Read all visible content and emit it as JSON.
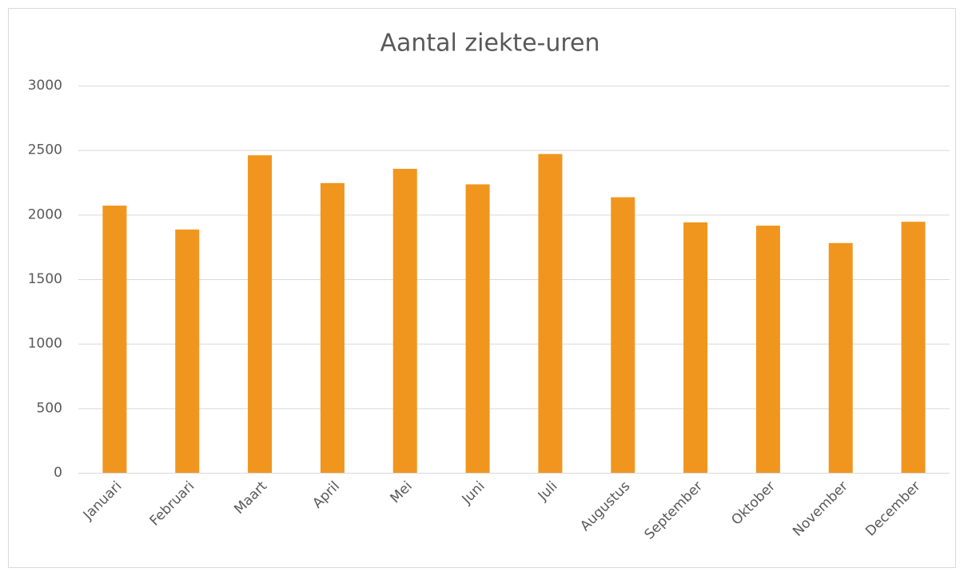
{
  "chart_data": {
    "type": "bar",
    "title": "Aantal ziekte-uren",
    "categories": [
      "Januari",
      "Februari",
      "Maart",
      "April",
      "Mei",
      "Juni",
      "Juli",
      "Augustus",
      "September",
      "Oktober",
      "November",
      "December"
    ],
    "values": [
      2070,
      1885,
      2460,
      2245,
      2355,
      2235,
      2470,
      2135,
      1940,
      1915,
      1780,
      1945
    ],
    "color": "#f0961e",
    "ylim": [
      0,
      3000
    ],
    "yticks": [
      0,
      500,
      1000,
      1500,
      2000,
      2500,
      3000
    ],
    "grid": true
  }
}
